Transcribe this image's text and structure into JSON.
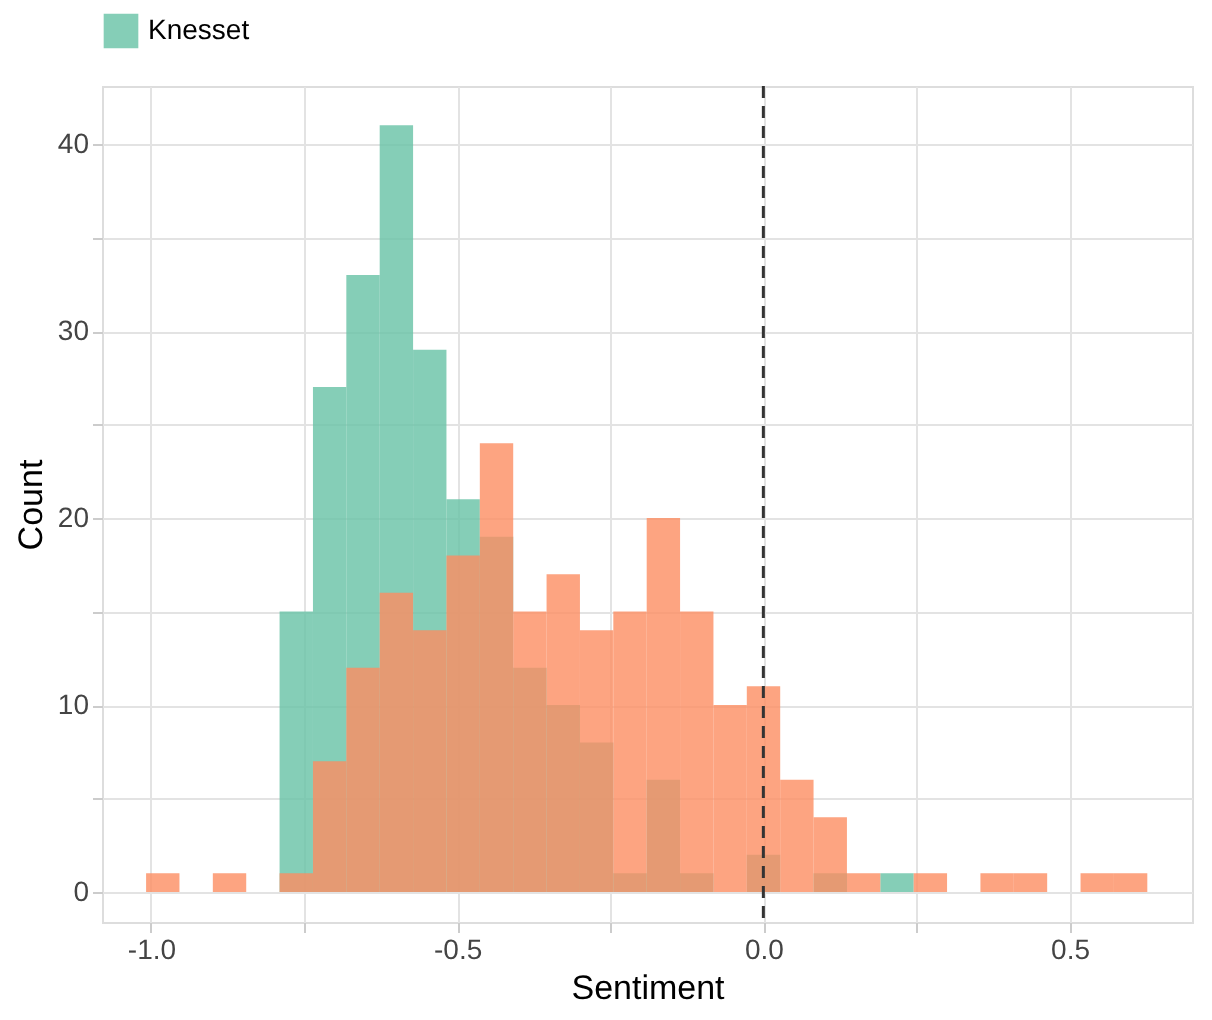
{
  "chart_data": {
    "type": "histogram",
    "xlabel": "Sentiment",
    "ylabel": "Count",
    "bins": [
      -1.008,
      -0.9535,
      -0.899,
      -0.8445,
      -0.79,
      -0.7355,
      -0.681,
      -0.6265,
      -0.572,
      -0.5175,
      -0.463,
      -0.4085,
      -0.354,
      -0.2995,
      -0.245,
      -0.1905,
      -0.136,
      -0.0815,
      -0.027,
      0.0275,
      0.082,
      0.1365,
      0.191,
      0.2455,
      0.3,
      0.3545,
      0.409,
      0.4635,
      0.518,
      0.5725,
      0.627
    ],
    "series": [
      {
        "name": "Knesset",
        "color": "#66c2a5",
        "values": [
          0,
          0,
          0,
          0,
          15,
          27,
          33,
          41,
          29,
          21,
          19,
          12,
          10,
          8,
          1,
          6,
          1,
          0,
          2,
          0,
          1,
          0,
          1,
          0,
          0,
          0,
          0,
          0,
          0,
          0
        ]
      },
      {
        "color": "#fc8d62",
        "values": [
          1,
          0,
          1,
          0,
          1,
          7,
          12,
          16,
          14,
          18,
          24,
          15,
          17,
          14,
          15,
          20,
          15,
          10,
          11,
          6,
          4,
          1,
          0,
          1,
          0,
          1,
          1,
          0,
          1,
          1
        ]
      }
    ],
    "xlim": [
      -1.08,
      0.7
    ],
    "xticks": [
      {
        "value": -1.0,
        "label": "-1.0"
      },
      {
        "value": -0.75,
        "label": null
      },
      {
        "value": -0.5,
        "label": "-0.5"
      },
      {
        "value": -0.25,
        "label": null
      },
      {
        "value": 0.0,
        "label": "0.0"
      },
      {
        "value": 0.25,
        "label": null
      },
      {
        "value": 0.5,
        "label": "0.5"
      }
    ],
    "ylim": [
      -1.6,
      43.1
    ],
    "yticks": [
      0,
      {
        "value": 5,
        "label": null
      },
      10,
      {
        "value": 15,
        "label": null
      },
      20,
      {
        "value": 25,
        "label": null
      },
      30,
      {
        "value": 35,
        "label": null
      },
      40
    ],
    "ref_lines": [
      {
        "axis": "x",
        "value": 0.0,
        "color": "#333333",
        "line_style": "dashed"
      }
    ],
    "grid": true,
    "legend": "top"
  }
}
